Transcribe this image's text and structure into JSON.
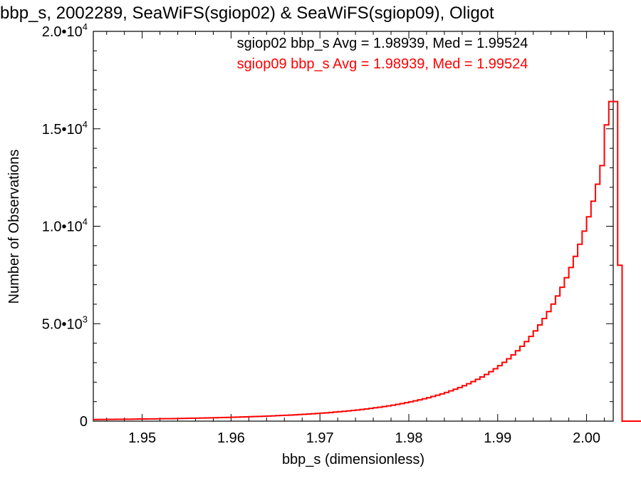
{
  "chart_data": {
    "type": "histogram-step",
    "title": "bbp_s, 2002289, SeaWiFS(sgiop02) & SeaWiFS(sgiop09), Oligot",
    "xlabel": "bbp_s (dimensionless)",
    "ylabel": "Number of Observations",
    "xlim": [
      1.9445,
      2.003
    ],
    "ylim": [
      0,
      20000
    ],
    "xticks": [
      {
        "value": 1.95,
        "label": "1.95"
      },
      {
        "value": 1.96,
        "label": "1.96"
      },
      {
        "value": 1.97,
        "label": "1.97"
      },
      {
        "value": 1.98,
        "label": "1.98"
      },
      {
        "value": 1.99,
        "label": "1.99"
      },
      {
        "value": 2.0,
        "label": "2.00"
      }
    ],
    "yticks": [
      {
        "value": 0,
        "mantissa": "0",
        "exponent": ""
      },
      {
        "value": 5000,
        "mantissa": "5.0•10",
        "exponent": "3"
      },
      {
        "value": 10000,
        "mantissa": "1.0•10",
        "exponent": "4"
      },
      {
        "value": 15000,
        "mantissa": "1.5•10",
        "exponent": "4"
      },
      {
        "value": 20000,
        "mantissa": "2.0•10",
        "exponent": "4"
      }
    ],
    "annotations": [
      {
        "text": "sgiop02 bbp_s Avg = 1.98939, Med = 1.99524",
        "color": "#000000"
      },
      {
        "text": "sgiop09 bbp_s Avg = 1.98939, Med = 1.99524",
        "color": "#ff0000"
      }
    ],
    "series": [
      {
        "color": "#ff0000",
        "bin_start": 1.9445,
        "bin_width": 0.0005,
        "counts": [
          80,
          85,
          88,
          90,
          92,
          95,
          97,
          100,
          102,
          105,
          108,
          110,
          113,
          116,
          120,
          123,
          127,
          130,
          134,
          138,
          142,
          146,
          150,
          155,
          160,
          165,
          170,
          175,
          181,
          187,
          193,
          199,
          206,
          213,
          220,
          228,
          236,
          244,
          252,
          262,
          271,
          281,
          291,
          302,
          313,
          325,
          338,
          351,
          365,
          379,
          394,
          410,
          427,
          445,
          464,
          483,
          504,
          526,
          549,
          573,
          598,
          625,
          654,
          684,
          715,
          748,
          783,
          820,
          859,
          901,
          944,
          990,
          1040,
          1091,
          1146,
          1204,
          1266,
          1331,
          1400,
          1474,
          1552,
          1636,
          1725,
          1819,
          1920,
          2027,
          2142,
          2265,
          2396,
          2536,
          2686,
          2846,
          3017,
          3201,
          3398,
          3610,
          3838,
          4083,
          4347,
          4631,
          4937,
          5267,
          5622,
          6006,
          6421,
          6870,
          7356,
          7883,
          8454,
          9075,
          9750,
          10484,
          11285,
          12159,
          13114,
          15200,
          16400,
          16400,
          8000,
          0,
          0,
          0,
          0,
          0,
          0,
          0,
          0
        ]
      }
    ],
    "legend": "none",
    "grid": false
  }
}
